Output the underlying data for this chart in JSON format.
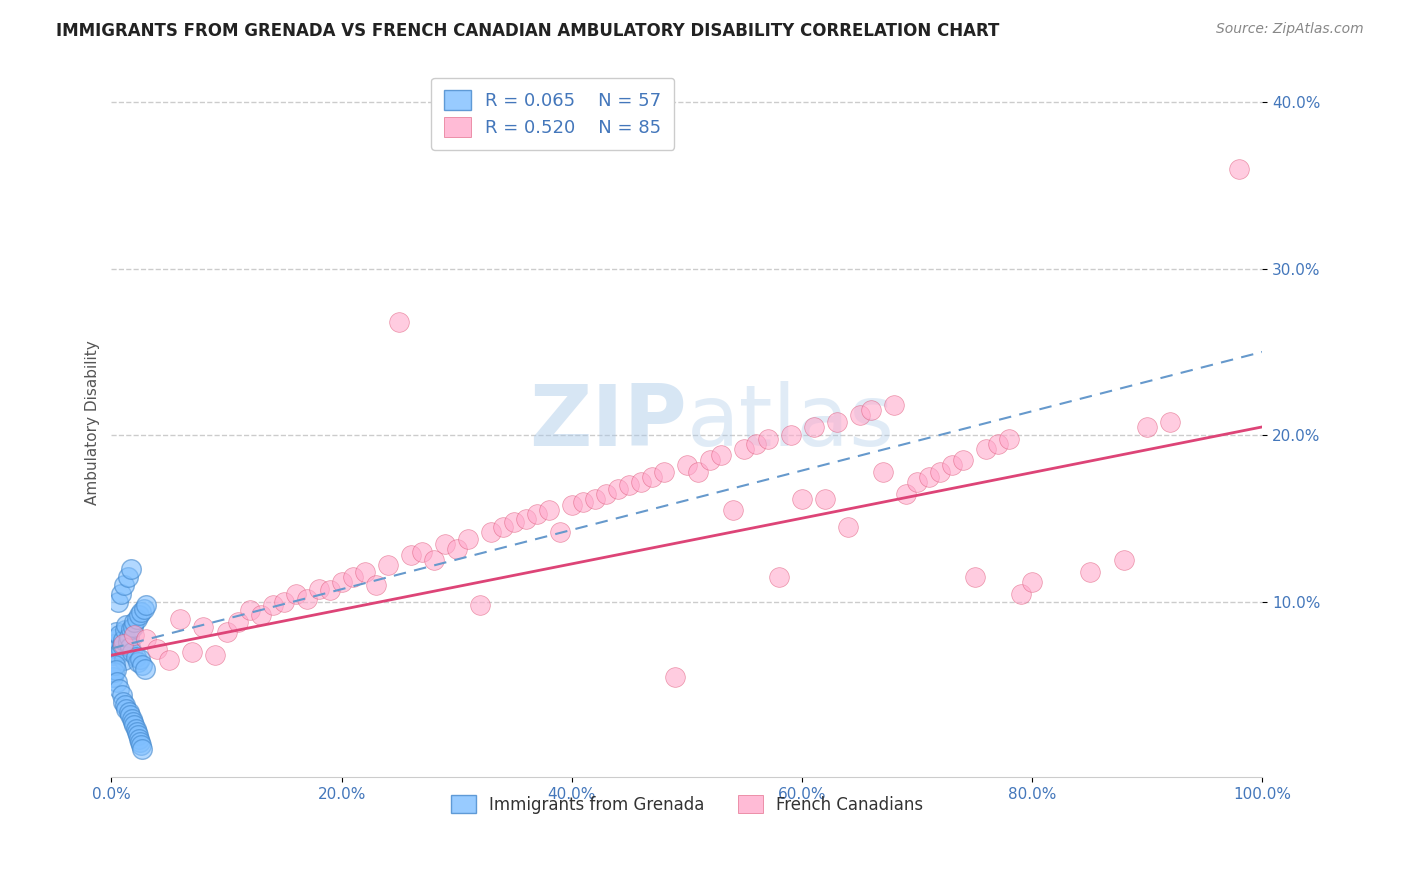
{
  "title": "IMMIGRANTS FROM GRENADA VS FRENCH CANADIAN AMBULATORY DISABILITY CORRELATION CHART",
  "source": "Source: ZipAtlas.com",
  "ylabel": "Ambulatory Disability",
  "xlim": [
    0.0,
    1.0
  ],
  "ylim": [
    -0.005,
    0.42
  ],
  "xticks": [
    0.0,
    0.2,
    0.4,
    0.6,
    0.8,
    1.0
  ],
  "xtick_labels": [
    "0.0%",
    "20.0%",
    "40.0%",
    "60.0%",
    "80.0%",
    "100.0%"
  ],
  "ytick_vals": [
    0.1,
    0.2,
    0.3,
    0.4
  ],
  "ytick_labels": [
    "10.0%",
    "20.0%",
    "30.0%",
    "40.0%"
  ],
  "watermark": "ZIPatlas",
  "legend_r1": "R = 0.065",
  "legend_n1": "N = 57",
  "legend_r2": "R = 0.520",
  "legend_n2": "N = 85",
  "legend_label1": "Immigrants from Grenada",
  "legend_label2": "French Canadians",
  "blue_color": "#7fbfff",
  "blue_edge_color": "#4488cc",
  "pink_color": "#ffaacc",
  "pink_edge_color": "#dd5577",
  "blue_line_color": "#6699cc",
  "pink_line_color": "#dd4477",
  "title_color": "#222222",
  "source_color": "#888888",
  "axis_label_color": "#555555",
  "tick_color": "#4477bb",
  "grid_color": "#cccccc",
  "background_color": "#ffffff",
  "blue_x": [
    0.001,
    0.002,
    0.003,
    0.004,
    0.005,
    0.006,
    0.007,
    0.008,
    0.009,
    0.01,
    0.011,
    0.012,
    0.013,
    0.014,
    0.015,
    0.016,
    0.017,
    0.018,
    0.019,
    0.02,
    0.021,
    0.022,
    0.023,
    0.024,
    0.025,
    0.026,
    0.027,
    0.028,
    0.029,
    0.03,
    0.001,
    0.002,
    0.003,
    0.004,
    0.005,
    0.006,
    0.007,
    0.008,
    0.009,
    0.01,
    0.011,
    0.012,
    0.013,
    0.014,
    0.015,
    0.016,
    0.017,
    0.018,
    0.019,
    0.02,
    0.021,
    0.022,
    0.023,
    0.024,
    0.025,
    0.026,
    0.027
  ],
  "blue_y": [
    0.068,
    0.075,
    0.078,
    0.082,
    0.072,
    0.069,
    0.08,
    0.071,
    0.074,
    0.077,
    0.065,
    0.083,
    0.086,
    0.076,
    0.079,
    0.073,
    0.084,
    0.07,
    0.085,
    0.088,
    0.067,
    0.09,
    0.064,
    0.092,
    0.066,
    0.094,
    0.062,
    0.096,
    0.06,
    0.098,
    0.055,
    0.058,
    0.062,
    0.059,
    0.052,
    0.1,
    0.048,
    0.105,
    0.044,
    0.04,
    0.11,
    0.038,
    0.036,
    0.115,
    0.034,
    0.032,
    0.12,
    0.03,
    0.028,
    0.026,
    0.024,
    0.022,
    0.02,
    0.018,
    0.016,
    0.014,
    0.012
  ],
  "pink_x": [
    0.01,
    0.02,
    0.03,
    0.04,
    0.05,
    0.06,
    0.07,
    0.08,
    0.09,
    0.1,
    0.11,
    0.12,
    0.13,
    0.14,
    0.15,
    0.16,
    0.17,
    0.18,
    0.19,
    0.2,
    0.21,
    0.22,
    0.23,
    0.24,
    0.25,
    0.26,
    0.27,
    0.28,
    0.29,
    0.3,
    0.31,
    0.32,
    0.33,
    0.34,
    0.35,
    0.36,
    0.37,
    0.38,
    0.39,
    0.4,
    0.41,
    0.42,
    0.43,
    0.44,
    0.45,
    0.46,
    0.47,
    0.48,
    0.49,
    0.5,
    0.51,
    0.52,
    0.53,
    0.54,
    0.55,
    0.56,
    0.57,
    0.58,
    0.59,
    0.6,
    0.61,
    0.62,
    0.63,
    0.64,
    0.65,
    0.66,
    0.67,
    0.68,
    0.69,
    0.7,
    0.71,
    0.72,
    0.73,
    0.74,
    0.75,
    0.76,
    0.77,
    0.78,
    0.79,
    0.8,
    0.85,
    0.88,
    0.9,
    0.92,
    0.98
  ],
  "pink_y": [
    0.075,
    0.08,
    0.078,
    0.072,
    0.065,
    0.09,
    0.07,
    0.085,
    0.068,
    0.082,
    0.088,
    0.095,
    0.092,
    0.098,
    0.1,
    0.105,
    0.102,
    0.108,
    0.107,
    0.112,
    0.115,
    0.118,
    0.11,
    0.122,
    0.268,
    0.128,
    0.13,
    0.125,
    0.135,
    0.132,
    0.138,
    0.098,
    0.142,
    0.145,
    0.148,
    0.15,
    0.153,
    0.155,
    0.142,
    0.158,
    0.16,
    0.162,
    0.165,
    0.168,
    0.17,
    0.172,
    0.175,
    0.178,
    0.055,
    0.182,
    0.178,
    0.185,
    0.188,
    0.155,
    0.192,
    0.195,
    0.198,
    0.115,
    0.2,
    0.162,
    0.205,
    0.162,
    0.208,
    0.145,
    0.212,
    0.215,
    0.178,
    0.218,
    0.165,
    0.172,
    0.175,
    0.178,
    0.182,
    0.185,
    0.115,
    0.192,
    0.195,
    0.198,
    0.105,
    0.112,
    0.118,
    0.125,
    0.205,
    0.208,
    0.36
  ]
}
